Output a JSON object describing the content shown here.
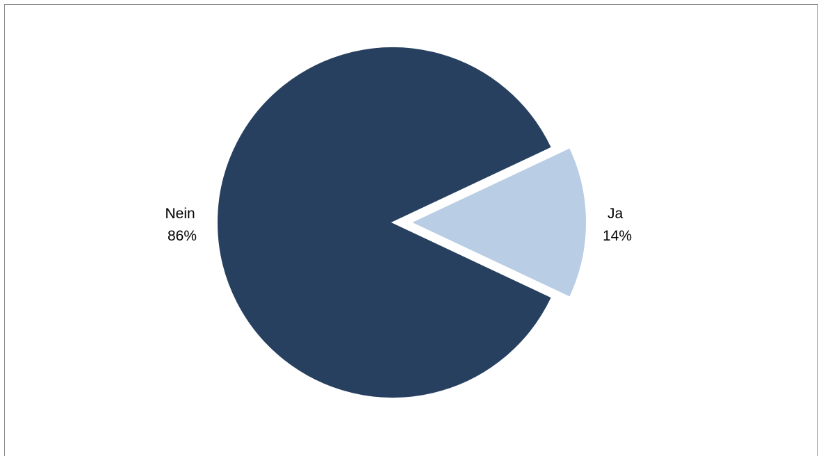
{
  "chart_data": {
    "type": "pie",
    "slices": [
      {
        "label": "Nein",
        "value": 86,
        "value_label": "86%",
        "color": "#27405f"
      },
      {
        "label": "Ja",
        "value": 14,
        "value_label": "14%",
        "color": "#b9cde4",
        "exploded": true
      }
    ],
    "legend": "none"
  }
}
